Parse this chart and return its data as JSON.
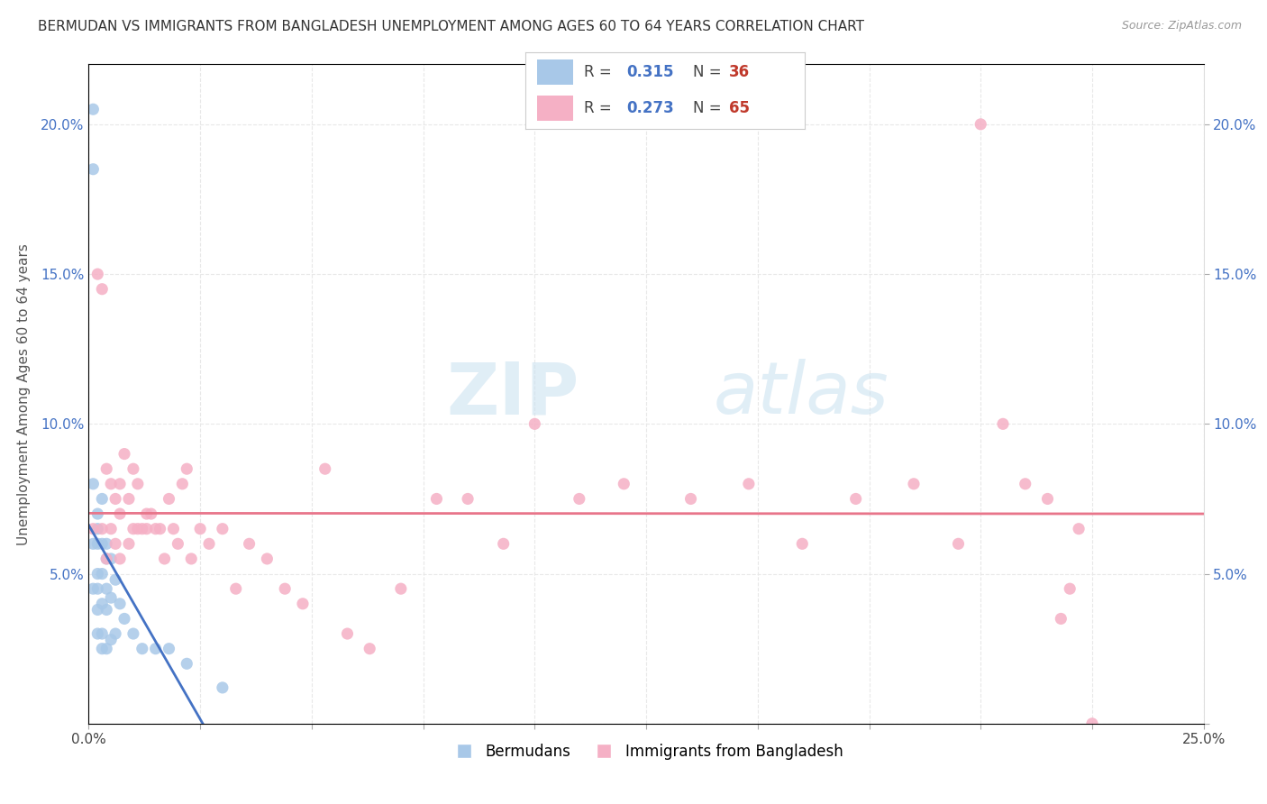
{
  "title": "BERMUDAN VS IMMIGRANTS FROM BANGLADESH UNEMPLOYMENT AMONG AGES 60 TO 64 YEARS CORRELATION CHART",
  "source": "Source: ZipAtlas.com",
  "ylabel": "Unemployment Among Ages 60 to 64 years",
  "xlim": [
    0.0,
    0.25
  ],
  "ylim": [
    0.0,
    0.22
  ],
  "x_ticks": [
    0.0,
    0.025,
    0.05,
    0.075,
    0.1,
    0.125,
    0.15,
    0.175,
    0.2,
    0.225,
    0.25
  ],
  "y_ticks": [
    0.0,
    0.05,
    0.1,
    0.15,
    0.2
  ],
  "x_edge_labels": [
    "0.0%",
    "25.0%"
  ],
  "y_tick_labels": [
    "",
    "5.0%",
    "10.0%",
    "15.0%",
    "20.0%"
  ],
  "bermuda_color": "#a8c8e8",
  "bangladesh_color": "#f5b0c5",
  "bermuda_line_color": "#4472c4",
  "bangladesh_line_color": "#e8758a",
  "bermuda_R": 0.315,
  "bermuda_N": 36,
  "bangladesh_R": 0.273,
  "bangladesh_N": 65,
  "legend_label_bermuda": "Bermudans",
  "legend_label_bangladesh": "Immigrants from Bangladesh",
  "watermark_zip": "ZIP",
  "watermark_atlas": "atlas",
  "legend_R_color": "#4472c4",
  "legend_N_color": "#c0392b",
  "grid_color": "#e8e8e8",
  "bermuda_scatter_x": [
    0.001,
    0.001,
    0.001,
    0.001,
    0.001,
    0.002,
    0.002,
    0.002,
    0.002,
    0.002,
    0.002,
    0.002,
    0.003,
    0.003,
    0.003,
    0.003,
    0.003,
    0.003,
    0.004,
    0.004,
    0.004,
    0.004,
    0.004,
    0.005,
    0.005,
    0.005,
    0.006,
    0.006,
    0.007,
    0.008,
    0.01,
    0.012,
    0.015,
    0.018,
    0.022,
    0.03
  ],
  "bermuda_scatter_y": [
    0.205,
    0.185,
    0.08,
    0.06,
    0.045,
    0.07,
    0.065,
    0.06,
    0.05,
    0.045,
    0.038,
    0.03,
    0.075,
    0.06,
    0.05,
    0.04,
    0.03,
    0.025,
    0.06,
    0.055,
    0.045,
    0.038,
    0.025,
    0.055,
    0.042,
    0.028,
    0.048,
    0.03,
    0.04,
    0.035,
    0.03,
    0.025,
    0.025,
    0.025,
    0.02,
    0.012
  ],
  "bangladesh_scatter_x": [
    0.001,
    0.002,
    0.003,
    0.003,
    0.004,
    0.004,
    0.005,
    0.005,
    0.006,
    0.006,
    0.007,
    0.007,
    0.007,
    0.008,
    0.009,
    0.009,
    0.01,
    0.01,
    0.011,
    0.011,
    0.012,
    0.013,
    0.013,
    0.014,
    0.015,
    0.016,
    0.017,
    0.018,
    0.019,
    0.02,
    0.021,
    0.022,
    0.023,
    0.025,
    0.027,
    0.03,
    0.033,
    0.036,
    0.04,
    0.044,
    0.048,
    0.053,
    0.058,
    0.063,
    0.07,
    0.078,
    0.085,
    0.093,
    0.1,
    0.11,
    0.12,
    0.135,
    0.148,
    0.16,
    0.172,
    0.185,
    0.195,
    0.2,
    0.205,
    0.21,
    0.215,
    0.218,
    0.22,
    0.222,
    0.225
  ],
  "bangladesh_scatter_y": [
    0.065,
    0.15,
    0.145,
    0.065,
    0.085,
    0.055,
    0.08,
    0.065,
    0.075,
    0.06,
    0.08,
    0.07,
    0.055,
    0.09,
    0.075,
    0.06,
    0.085,
    0.065,
    0.08,
    0.065,
    0.065,
    0.07,
    0.065,
    0.07,
    0.065,
    0.065,
    0.055,
    0.075,
    0.065,
    0.06,
    0.08,
    0.085,
    0.055,
    0.065,
    0.06,
    0.065,
    0.045,
    0.06,
    0.055,
    0.045,
    0.04,
    0.085,
    0.03,
    0.025,
    0.045,
    0.075,
    0.075,
    0.06,
    0.1,
    0.075,
    0.08,
    0.075,
    0.08,
    0.06,
    0.075,
    0.08,
    0.06,
    0.2,
    0.1,
    0.08,
    0.075,
    0.035,
    0.045,
    0.065,
    0.0
  ]
}
